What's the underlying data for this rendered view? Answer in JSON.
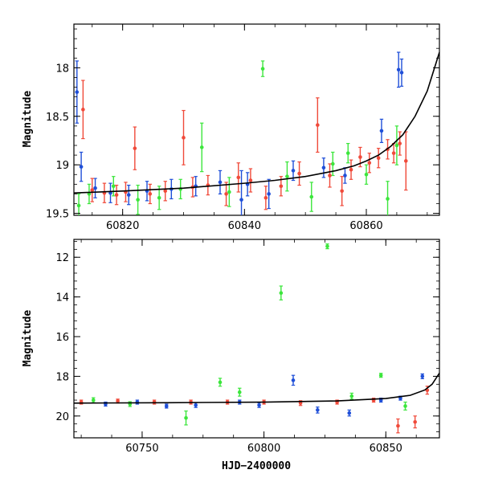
{
  "chart_data": [
    {
      "type": "scatter",
      "panel": "top",
      "title": "",
      "xlabel": "",
      "ylabel": "Magnitude",
      "xlim": [
        60812,
        60872
      ],
      "ylim": [
        19.52,
        17.55
      ],
      "y_inverted": true,
      "x_ticks": [
        60820,
        60840,
        60860
      ],
      "y_ticks": [
        18,
        18.5,
        19,
        19.5
      ],
      "x_tick_labels": [
        "60820",
        "60840",
        "60860"
      ],
      "y_tick_labels": [
        "18",
        "18.5",
        "19",
        "19.5"
      ],
      "grid": false,
      "legend": "none",
      "colors": {
        "blue": "#1f4fd8",
        "green": "#3ce63c",
        "red": "#f04a3a",
        "model": "#000000"
      },
      "model_curve": {
        "x": [
          60812,
          60820,
          60830,
          60840,
          60845,
          60850,
          60855,
          60858,
          60860,
          60862,
          60864,
          60866,
          60868,
          60870,
          60872
        ],
        "y": [
          19.29,
          19.27,
          19.24,
          19.19,
          19.16,
          19.12,
          19.06,
          19.01,
          18.96,
          18.9,
          18.81,
          18.69,
          18.5,
          18.24,
          17.84
        ]
      },
      "series": [
        {
          "color": "blue",
          "x": [
            60812.5,
            60813.2,
            60815.5,
            60818,
            60821,
            60824,
            60828,
            60832,
            60836,
            60839.5,
            60840.5,
            60844,
            60848,
            60853,
            60856.5,
            60862.5,
            60865.3,
            60865.8
          ],
          "y": [
            18.25,
            19.02,
            19.24,
            19.29,
            19.31,
            19.27,
            19.25,
            19.22,
            19.18,
            19.36,
            19.2,
            19.3,
            19.06,
            19.03,
            19.11,
            18.65,
            18.02,
            18.05
          ],
          "err": [
            0.32,
            0.15,
            0.1,
            0.1,
            0.1,
            0.1,
            0.1,
            0.1,
            0.12,
            0.3,
            0.12,
            0.15,
            0.1,
            0.1,
            0.08,
            0.12,
            0.18,
            0.14
          ]
        },
        {
          "color": "green",
          "x": [
            60812.8,
            60814.5,
            60818.5,
            60822.5,
            60826,
            60829.5,
            60833,
            60837.5,
            60843,
            60847,
            60851,
            60854.5,
            60857,
            60860,
            60863.5,
            60865
          ],
          "y": [
            19.42,
            19.3,
            19.22,
            19.36,
            19.34,
            19.25,
            18.82,
            19.28,
            18.01,
            19.12,
            19.33,
            18.99,
            18.88,
            19.1,
            19.35,
            18.8
          ],
          "err": [
            0.12,
            0.1,
            0.1,
            0.15,
            0.12,
            0.1,
            0.25,
            0.15,
            0.08,
            0.15,
            0.15,
            0.12,
            0.1,
            0.1,
            0.18,
            0.2
          ]
        },
        {
          "color": "red",
          "x": [
            60813.5,
            60815,
            60817,
            60819,
            60820.5,
            60822,
            60824.5,
            60827,
            60830,
            60831.5,
            60834,
            60837,
            60839,
            60841,
            60843.5,
            60846,
            60849,
            60852,
            60854,
            60856,
            60857.5,
            60859,
            60860.5,
            60862,
            60863.5,
            60864.5,
            60865.5,
            60866.5
          ],
          "y": [
            18.43,
            19.26,
            19.29,
            19.31,
            19.28,
            18.83,
            19.3,
            19.27,
            18.72,
            19.23,
            19.21,
            19.3,
            19.13,
            19.16,
            19.34,
            19.22,
            19.09,
            18.59,
            19.11,
            19.27,
            19.05,
            18.92,
            18.98,
            18.93,
            18.84,
            18.88,
            18.78,
            18.96
          ],
          "err": [
            0.3,
            0.12,
            0.1,
            0.1,
            0.1,
            0.22,
            0.1,
            0.1,
            0.28,
            0.1,
            0.1,
            0.12,
            0.15,
            0.12,
            0.12,
            0.1,
            0.12,
            0.28,
            0.12,
            0.15,
            0.1,
            0.1,
            0.1,
            0.1,
            0.1,
            0.1,
            0.12,
            0.3
          ]
        }
      ]
    },
    {
      "type": "scatter",
      "panel": "bottom",
      "title": "",
      "xlabel": "HJD−2400000",
      "ylabel": "Magnitude",
      "xlim": [
        60722,
        60872
      ],
      "ylim": [
        21.1,
        11.1
      ],
      "y_inverted": true,
      "x_ticks": [
        60750,
        60800,
        60850
      ],
      "y_ticks": [
        12,
        14,
        16,
        18,
        20
      ],
      "x_tick_labels": [
        "60750",
        "60800",
        "60850"
      ],
      "y_tick_labels": [
        "12",
        "14",
        "16",
        "18",
        "20"
      ],
      "grid": false,
      "legend": "none",
      "model_curve": {
        "x": [
          60722,
          60760,
          60800,
          60830,
          60850,
          60860,
          60866,
          60869,
          60872
        ],
        "y": [
          19.35,
          19.33,
          19.3,
          19.24,
          19.12,
          18.96,
          18.69,
          18.4,
          17.84
        ]
      },
      "series": [
        {
          "color": "blue",
          "x": [
            60735,
            60748,
            60760,
            60772,
            60790,
            60798,
            60812,
            60822,
            60835,
            60848,
            60856,
            60865
          ],
          "y": [
            19.4,
            19.3,
            19.5,
            19.45,
            19.3,
            19.45,
            18.2,
            19.7,
            19.85,
            19.2,
            19.1,
            18.0
          ],
          "err": [
            0.1,
            0.1,
            0.1,
            0.12,
            0.1,
            0.12,
            0.25,
            0.15,
            0.15,
            0.1,
            0.1,
            0.12
          ]
        },
        {
          "color": "green",
          "x": [
            60730,
            60745,
            60768,
            60782,
            60790,
            60807,
            60826,
            60836,
            60848,
            60858
          ],
          "y": [
            19.2,
            19.4,
            20.1,
            18.3,
            18.8,
            13.8,
            11.45,
            19.0,
            17.95,
            19.5
          ],
          "err": [
            0.12,
            0.12,
            0.35,
            0.2,
            0.2,
            0.35,
            0.12,
            0.15,
            0.1,
            0.2
          ]
        },
        {
          "color": "red",
          "x": [
            60725,
            60740,
            60755,
            60770,
            60785,
            60800,
            60815,
            60830,
            60845,
            60855,
            60862,
            60867
          ],
          "y": [
            19.3,
            19.25,
            19.3,
            19.3,
            19.3,
            19.3,
            19.35,
            19.3,
            19.2,
            20.5,
            20.3,
            18.7
          ],
          "err": [
            0.1,
            0.1,
            0.1,
            0.1,
            0.1,
            0.1,
            0.12,
            0.1,
            0.1,
            0.35,
            0.3,
            0.2
          ]
        }
      ]
    }
  ]
}
